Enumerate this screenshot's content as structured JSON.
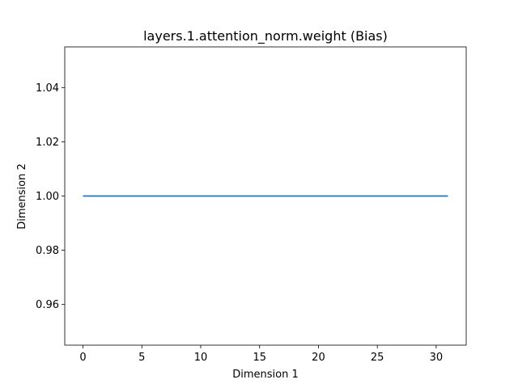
{
  "chart_data": {
    "type": "line",
    "title": "layers.1.attention_norm.weight (Bias)",
    "xlabel": "Dimension 1",
    "ylabel": "Dimension 2",
    "xlim": [
      -1.55,
      32.55
    ],
    "ylim": [
      0.945,
      1.055
    ],
    "x_ticks": [
      0,
      5,
      10,
      15,
      20,
      25,
      30
    ],
    "y_ticks": [
      0.96,
      0.98,
      1.0,
      1.02,
      1.04
    ],
    "y_tick_labels": [
      "0.96",
      "0.98",
      "1.00",
      "1.02",
      "1.04"
    ],
    "series": [
      {
        "color": "#1f77b4",
        "x": [
          0,
          1,
          2,
          3,
          4,
          5,
          6,
          7,
          8,
          9,
          10,
          11,
          12,
          13,
          14,
          15,
          16,
          17,
          18,
          19,
          20,
          21,
          22,
          23,
          24,
          25,
          26,
          27,
          28,
          29,
          30,
          31
        ],
        "y": [
          1,
          1,
          1,
          1,
          1,
          1,
          1,
          1,
          1,
          1,
          1,
          1,
          1,
          1,
          1,
          1,
          1,
          1,
          1,
          1,
          1,
          1,
          1,
          1,
          1,
          1,
          1,
          1,
          1,
          1,
          1,
          1
        ]
      }
    ],
    "grid": false,
    "legend": "none"
  }
}
